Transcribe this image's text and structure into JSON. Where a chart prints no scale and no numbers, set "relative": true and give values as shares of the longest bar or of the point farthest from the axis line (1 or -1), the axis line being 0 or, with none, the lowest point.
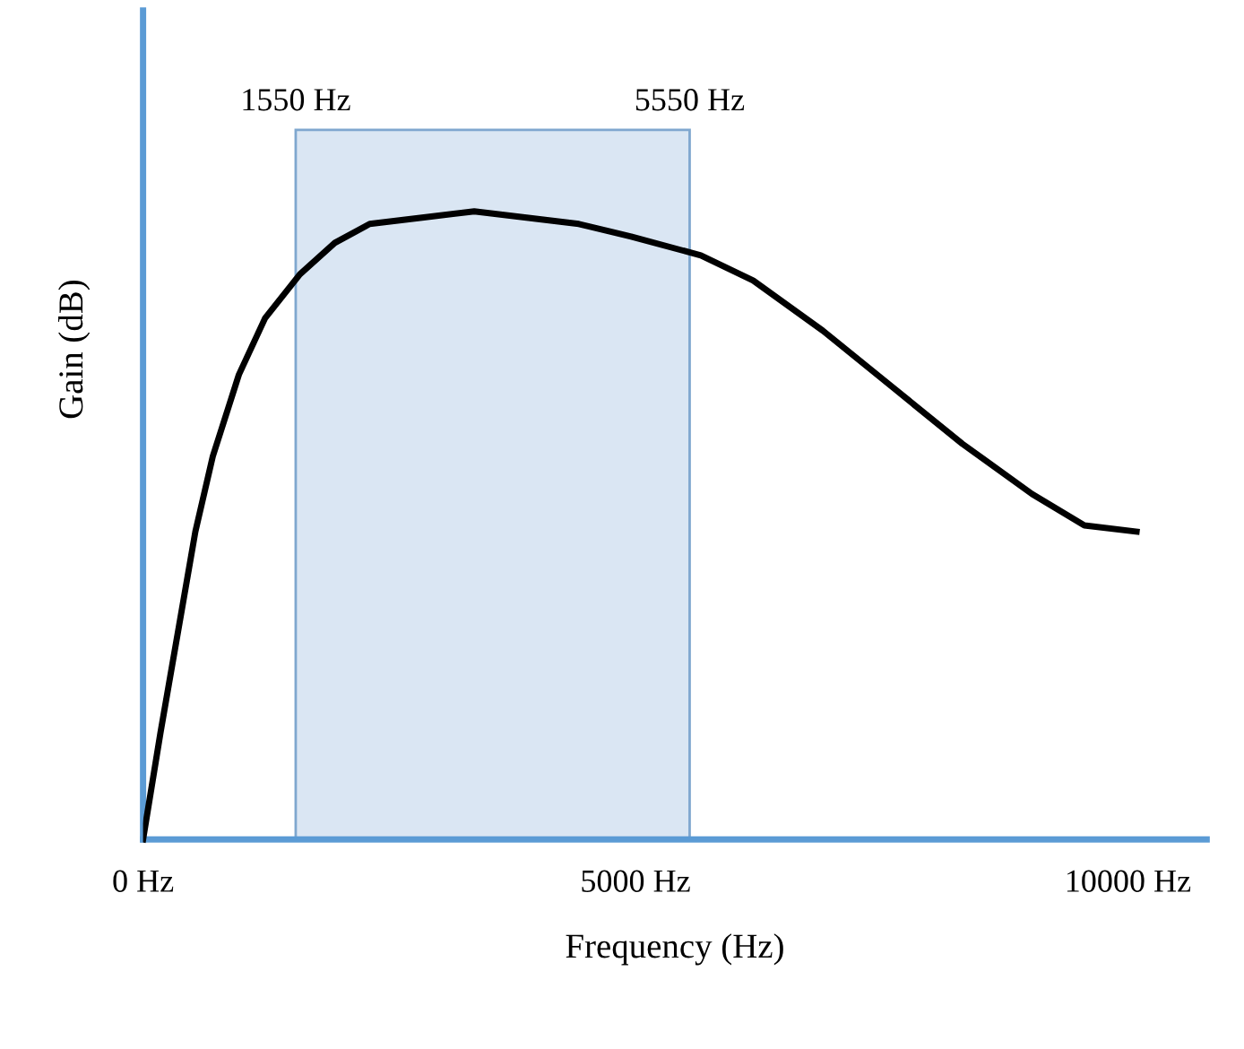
{
  "chart_data": {
    "type": "line",
    "relative": true,
    "xlabel": "Frequency (Hz)",
    "ylabel": "Gain (dB)",
    "xlim": [
      0,
      10800
    ],
    "xticks": [
      {
        "value": 0,
        "label": "0 Hz"
      },
      {
        "value": 5000,
        "label": "5000 Hz"
      },
      {
        "value": 10000,
        "label": "10000 Hz"
      }
    ],
    "series": [
      {
        "color": "#000000",
        "x": [
          0,
          177,
          354,
          531,
          708,
          973,
          1239,
          1593,
          1947,
          2301,
          2832,
          3363,
          3894,
          4425,
          4956,
          5664,
          6195,
          6903,
          7611,
          8319,
          9027,
          9558,
          10088
        ],
        "values": [
          0,
          0.17,
          0.33,
          0.49,
          0.61,
          0.74,
          0.83,
          0.9,
          0.95,
          0.98,
          0.99,
          1.0,
          0.99,
          0.98,
          0.96,
          0.93,
          0.89,
          0.81,
          0.72,
          0.63,
          0.55,
          0.5,
          0.49
        ]
      }
    ],
    "bands": [
      {
        "axis": "x",
        "from": 1550,
        "to": 5550,
        "color": "#dae6f3"
      }
    ],
    "annotations": [
      {
        "text": "1550 Hz",
        "x": 1550,
        "y": 1.13
      },
      {
        "text": "5550 Hz",
        "x": 5550,
        "y": 1.13
      }
    ],
    "grid": false,
    "legend": false,
    "marker": "none",
    "line_style": "solid"
  }
}
